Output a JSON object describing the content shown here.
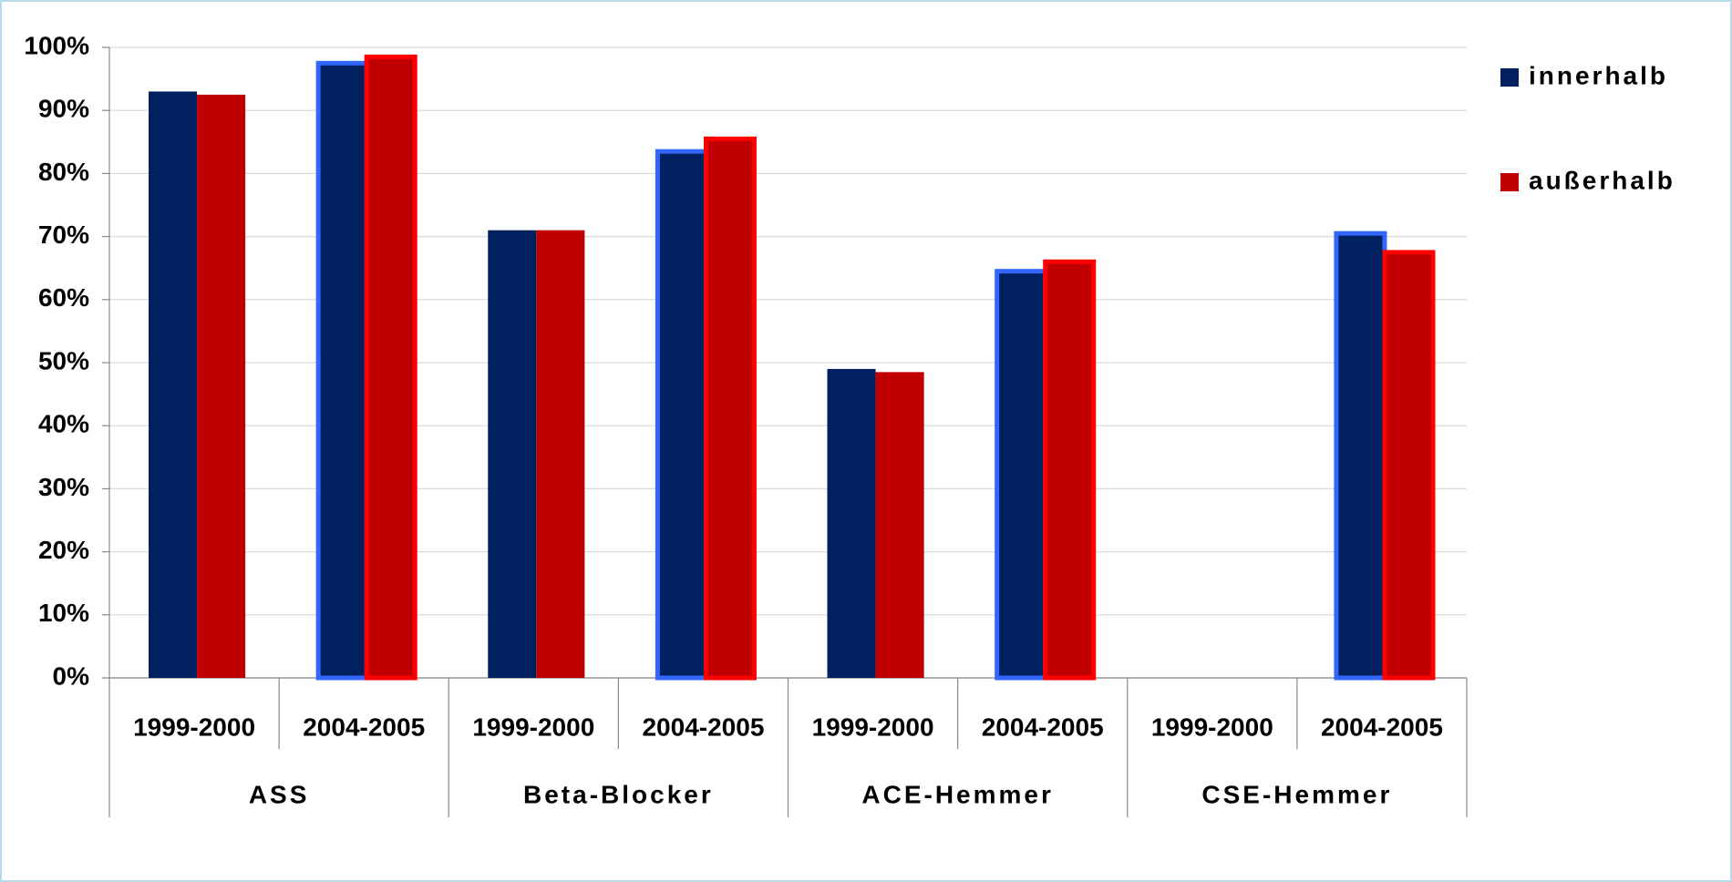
{
  "chart_data": {
    "type": "bar",
    "categories": [
      "1999-2000",
      "2004-2005",
      "1999-2000",
      "2004-2005",
      "1999-2000",
      "2004-2005",
      "1999-2000",
      "2004-2005"
    ],
    "groups": [
      "ASS",
      "Beta-Blocker",
      "ACE-Hemmer",
      "CSE-Hemmer"
    ],
    "series": [
      {
        "name": "innerhalb",
        "color": "#002060",
        "edgecolors": [
          null,
          "#3366ff",
          null,
          "#3366ff",
          null,
          "#3366ff",
          null,
          "#3366ff"
        ],
        "values": [
          93,
          97.5,
          71,
          83.5,
          49,
          64.5,
          null,
          70.5
        ]
      },
      {
        "name": "außerhalb",
        "color": "#c00000",
        "edgecolors": [
          null,
          "#ff0000",
          null,
          "#ff0000",
          null,
          "#ff0000",
          null,
          "#ff0000"
        ],
        "values": [
          92.5,
          98.5,
          71,
          85.5,
          48.5,
          66,
          null,
          67.5
        ]
      }
    ],
    "ylim": [
      0,
      100
    ],
    "yticks": [
      {
        "value": 0,
        "label": "0%"
      },
      {
        "value": 10,
        "label": "10%"
      },
      {
        "value": 20,
        "label": "20%"
      },
      {
        "value": 30,
        "label": "30%"
      },
      {
        "value": 40,
        "label": "40%"
      },
      {
        "value": 50,
        "label": "50%"
      },
      {
        "value": 60,
        "label": "60%"
      },
      {
        "value": 70,
        "label": "70%"
      },
      {
        "value": 80,
        "label": "80%"
      },
      {
        "value": 90,
        "label": "90%"
      },
      {
        "value": 100,
        "label": "100%"
      }
    ],
    "grid": true,
    "legend": "upper right"
  }
}
